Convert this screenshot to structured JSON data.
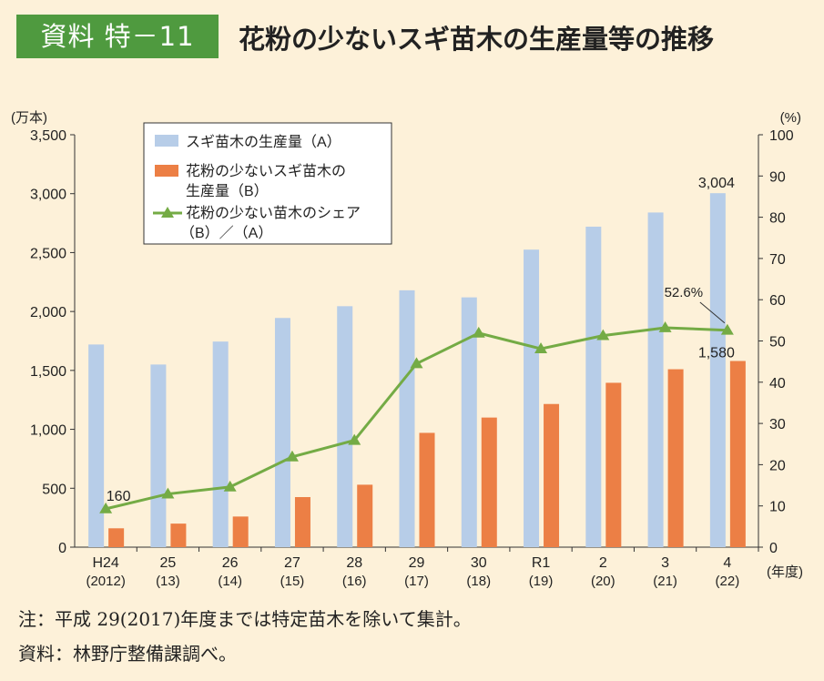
{
  "header": {
    "badge": "資料 特－11",
    "title": "花粉の少ないスギ苗木の生産量等の推移"
  },
  "notes": {
    "note": "注：平成 29(2017)年度までは特定苗木を除いて集計。",
    "source": "資料：林野庁整備課調べ。"
  },
  "colors": {
    "badge": "#4f9a3f",
    "background": "#fdf1d9",
    "series_a": "#b7cde8",
    "series_b": "#ec7f45",
    "series_share": "#74ab45"
  },
  "chart_data": {
    "type": "bar+line",
    "categories": [
      "H24",
      "25",
      "26",
      "27",
      "28",
      "29",
      "30",
      "R1",
      "2",
      "3",
      "4"
    ],
    "categories_sub": [
      "(2012)",
      "(13)",
      "(14)",
      "(15)",
      "(16)",
      "(17)",
      "(18)",
      "(19)",
      "(20)",
      "(21)",
      "(22)"
    ],
    "x_unit": "(年度)",
    "y_left": {
      "unit": "(万本)",
      "ylim": [
        0,
        3500
      ],
      "ticks": [
        0,
        500,
        1000,
        1500,
        2000,
        2500,
        3000,
        3500
      ]
    },
    "y_right": {
      "unit": "(%)",
      "ylim": [
        0,
        100
      ],
      "ticks": [
        0,
        10,
        20,
        30,
        40,
        50,
        60,
        70,
        80,
        90,
        100
      ]
    },
    "series": [
      {
        "name": "スギ苗木の生産量（A）",
        "type": "bar",
        "axis": "left",
        "values": [
          1720,
          1550,
          1745,
          1945,
          2045,
          2180,
          2120,
          2525,
          2720,
          2840,
          3004
        ]
      },
      {
        "name": "花粉の少ないスギ苗木の生産量（B）",
        "type": "bar",
        "axis": "left",
        "values": [
          160,
          200,
          260,
          425,
          530,
          970,
          1100,
          1215,
          1395,
          1510,
          1580
        ]
      },
      {
        "name": "花粉の少ない苗木のシェア（B）／（A）",
        "type": "line",
        "axis": "right",
        "values": [
          9.3,
          12.9,
          14.6,
          21.9,
          25.9,
          44.5,
          51.9,
          48.1,
          51.3,
          53.2,
          52.6
        ]
      }
    ],
    "data_labels": [
      {
        "series": 0,
        "index": 10,
        "text": "3,004"
      },
      {
        "series": 1,
        "index": 10,
        "text": "1,580"
      },
      {
        "series": 2,
        "index": 10,
        "text": "52.6%"
      },
      {
        "series": 1,
        "index": 0,
        "text": "160"
      }
    ],
    "legend": {
      "placement": "top-left",
      "lines": [
        [
          "スギ苗木の生産量（A）"
        ],
        [
          "花粉の少ないスギ苗木の",
          "生産量（B）"
        ],
        [
          "花粉の少ない苗木のシェア",
          "（B）／（A）"
        ]
      ]
    },
    "grid": false
  }
}
